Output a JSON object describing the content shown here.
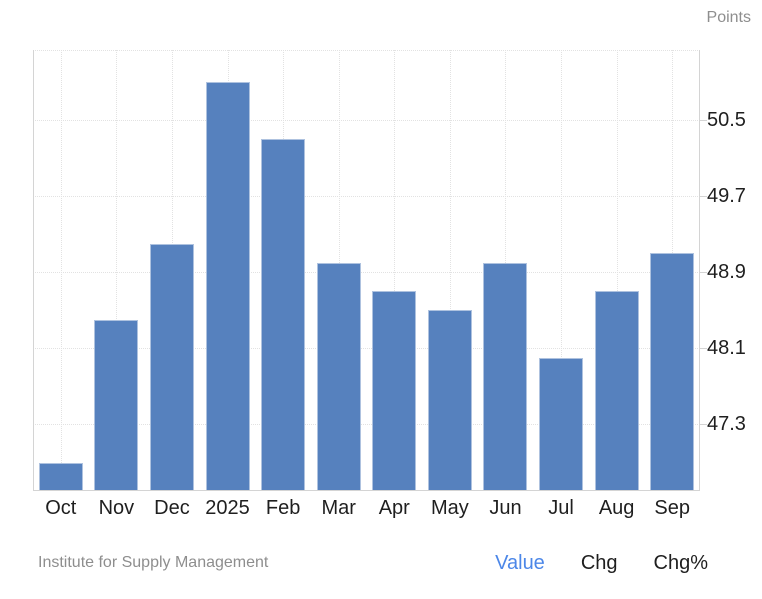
{
  "header": {
    "unit_label": "Points"
  },
  "footer": {
    "source": "Institute for Supply Management",
    "tabs": [
      {
        "label": "Value",
        "active": true
      },
      {
        "label": "Chg",
        "active": false
      },
      {
        "label": "Chg%",
        "active": false
      }
    ]
  },
  "colors": {
    "bar": "#5681BE",
    "bar_border": "#AEC2DF",
    "grid": "#E2E2E2",
    "axis": "#D4D4D4",
    "text": "#1F1F1F",
    "muted": "#8E8E8E",
    "accent": "#4C87E8",
    "background": "#FFFFFF"
  },
  "chart_data": {
    "type": "bar",
    "unit": "Points",
    "categories": [
      "Oct",
      "Nov",
      "Dec",
      "2025",
      "Feb",
      "Mar",
      "Apr",
      "May",
      "Jun",
      "Jul",
      "Aug",
      "Sep"
    ],
    "values": [
      46.9,
      48.4,
      49.2,
      50.9,
      50.3,
      49.0,
      48.7,
      48.5,
      49.0,
      48.0,
      48.7,
      49.1
    ],
    "yticks": [
      47.3,
      48.1,
      48.9,
      49.7,
      50.5
    ],
    "ylim": [
      46.6,
      51.24
    ],
    "ylabel": "Points",
    "xlabel": "",
    "grid": "dotted horizontal lines at yticks plus top edge; dotted vertical lines at category centers",
    "legend_position": "none",
    "source": "Institute for Supply Management"
  }
}
